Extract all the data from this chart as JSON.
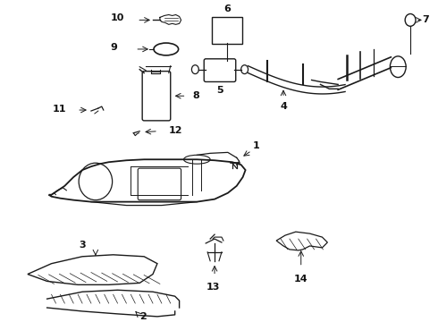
{
  "background_color": "#ffffff",
  "line_color": "#1a1a1a",
  "text_color": "#111111",
  "fig_width": 4.9,
  "fig_height": 3.6,
  "dpi": 100
}
